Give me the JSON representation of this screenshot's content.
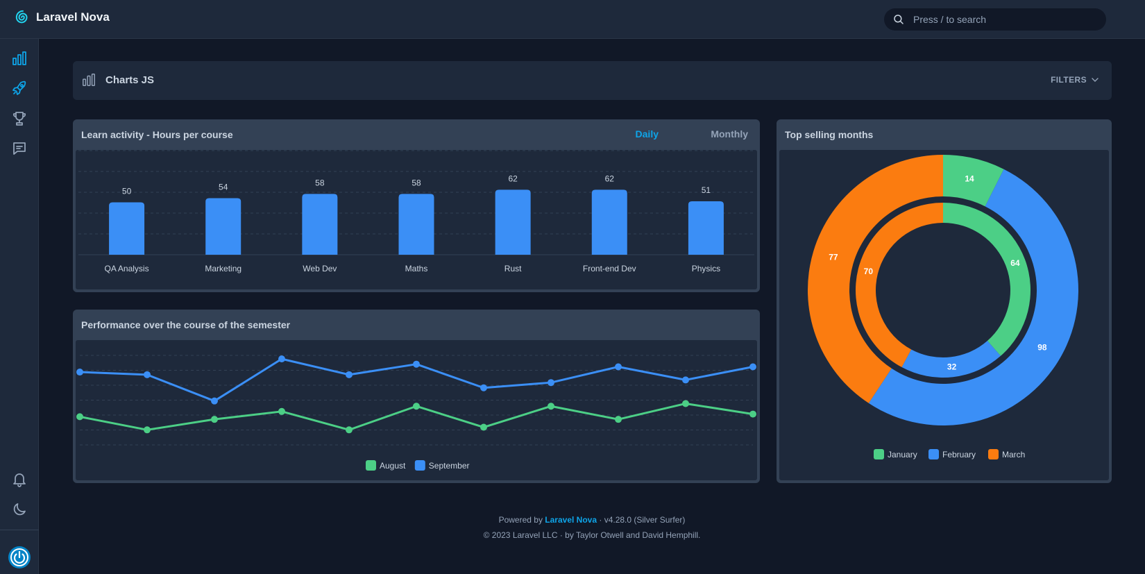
{
  "app": {
    "name": "Laravel Nova"
  },
  "search": {
    "placeholder": "Press / to search"
  },
  "sidebar": {
    "items": [
      {
        "name": "dashboards-icon"
      },
      {
        "name": "rocket-icon"
      },
      {
        "name": "trophy-icon"
      },
      {
        "name": "chat-icon"
      },
      {
        "name": "bell-icon"
      },
      {
        "name": "moon-icon"
      },
      {
        "name": "power-icon"
      }
    ]
  },
  "header": {
    "title": "Charts JS",
    "filters_label": "FILTERS"
  },
  "colors": {
    "accent": "#0ea5e9",
    "blue": "#3b8ff6",
    "green": "#4ccf86",
    "orange": "#fb7c10"
  },
  "cards": {
    "bar": {
      "title": "Learn activity - Hours per course",
      "daily": "Daily",
      "monthly": "Monthly"
    },
    "line": {
      "title": "Performance over the course of the semester"
    },
    "doughnut": {
      "title": "Top selling months"
    }
  },
  "chart_data": [
    {
      "type": "bar",
      "title": "Learn activity - Hours per course",
      "categories": [
        "QA Analysis",
        "Marketing",
        "Web Dev",
        "Maths",
        "Rust",
        "Front-end Dev",
        "Physics"
      ],
      "values": [
        50,
        54,
        58,
        58,
        62,
        62,
        51
      ],
      "ylim": [
        0,
        100
      ],
      "grid": true
    },
    {
      "type": "line",
      "title": "Performance over the course of the semester",
      "x": [
        1,
        2,
        3,
        4,
        5,
        6,
        7,
        8,
        9,
        10,
        11
      ],
      "series": [
        {
          "name": "August",
          "values": [
            36,
            31,
            35,
            38,
            31,
            40,
            32,
            40,
            35,
            41,
            37
          ]
        },
        {
          "name": "September",
          "values": [
            53,
            52,
            42,
            58,
            52,
            56,
            47,
            49,
            55,
            50,
            55
          ]
        }
      ],
      "ylim": [
        25,
        62
      ],
      "legend": "bottom",
      "grid": true
    },
    {
      "type": "pie",
      "title": "Top selling months",
      "categories": [
        "January",
        "February",
        "March"
      ],
      "series": [
        {
          "values": [
            14,
            98,
            77
          ]
        },
        {
          "values": [
            64,
            32,
            70
          ]
        }
      ],
      "legend": "bottom"
    }
  ],
  "footer": {
    "powered_by": "Powered by",
    "nova_link": "Laravel Nova",
    "version": "· v4.28.0 (Silver Surfer)",
    "copyright": "© 2023 Laravel LLC · by Taylor Otwell and David Hemphill."
  }
}
